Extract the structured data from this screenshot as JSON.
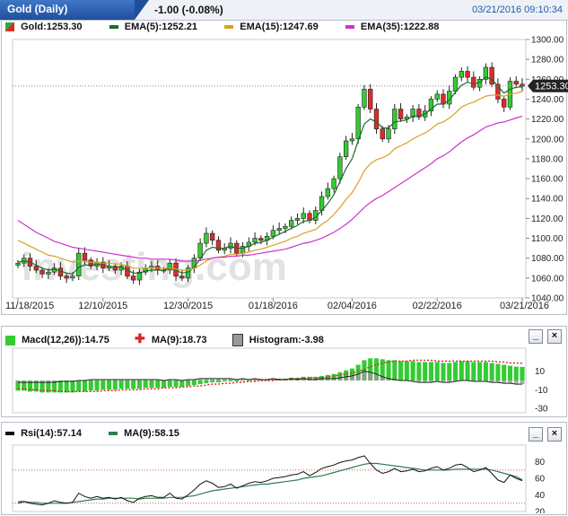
{
  "header": {
    "title": "Gold (Daily)",
    "change": "-1.00 (-0.08%)",
    "datetime": "03/21/2016 09:10:34"
  },
  "main": {
    "legend": [
      {
        "label": "Gold:1253.30",
        "color": "#1a1a1a"
      },
      {
        "label": "EMA(5):1252.21",
        "color": "#1d6b2a"
      },
      {
        "label": "EMA(15):1247.69",
        "color": "#d9a122"
      },
      {
        "label": "EMA(35):1222.88",
        "color": "#cc33cc"
      }
    ],
    "price_tag": "1253.30",
    "watermark": "investing.com"
  },
  "macd_panel": {
    "legend": [
      {
        "label": "Macd(12,26)):14.75",
        "color": "#33cc33"
      },
      {
        "label": "MA(9):18.73",
        "color": "#e02020"
      },
      {
        "label": "Histogram:-3.98",
        "color": "#999999"
      }
    ],
    "minimize": "_",
    "close": "×"
  },
  "rsi_panel": {
    "legend": [
      {
        "label": "Rsi(14):57.14",
        "color": "#111111"
      },
      {
        "label": "MA(9):58.15",
        "color": "#2e7d4f"
      }
    ],
    "minimize": "_",
    "close": "×"
  },
  "chart_data": [
    {
      "type": "candlestick",
      "x_tick_labels": [
        "11/18/2015",
        "12/10/2015",
        "12/30/2015",
        "01/18/2016",
        "02/04/2016",
        "02/22/2016",
        "03/21/2016"
      ],
      "ylim": [
        1040,
        1300
      ],
      "y_ticks": [
        1040,
        1060,
        1080,
        1100,
        1120,
        1140,
        1160,
        1180,
        1200,
        1220,
        1240,
        1260,
        1280,
        1300
      ],
      "last_price": 1253.3,
      "close": [
        1075,
        1080,
        1072,
        1068,
        1064,
        1066,
        1070,
        1062,
        1060,
        1062,
        1085,
        1078,
        1072,
        1076,
        1070,
        1072,
        1068,
        1072,
        1062,
        1058,
        1066,
        1070,
        1072,
        1068,
        1068,
        1075,
        1062,
        1060,
        1070,
        1080,
        1095,
        1105,
        1098,
        1088,
        1090,
        1095,
        1085,
        1092,
        1096,
        1100,
        1098,
        1102,
        1108,
        1110,
        1112,
        1118,
        1120,
        1125,
        1118,
        1128,
        1142,
        1150,
        1160,
        1182,
        1198,
        1200,
        1232,
        1250,
        1230,
        1210,
        1200,
        1210,
        1230,
        1220,
        1222,
        1230,
        1222,
        1228,
        1240,
        1245,
        1235,
        1248,
        1262,
        1268,
        1262,
        1252,
        1260,
        1272,
        1255,
        1240,
        1232,
        1258,
        1255,
        1253
      ],
      "series": [
        {
          "name": "EMA(5)",
          "values": [
            1076,
            1077,
            1076,
            1073,
            1070,
            1068,
            1069,
            1067,
            1065,
            1064,
            1071,
            1073,
            1073,
            1074,
            1073,
            1072,
            1071,
            1071,
            1068,
            1065,
            1065,
            1067,
            1068,
            1068,
            1068,
            1070,
            1068,
            1065,
            1066,
            1071,
            1079,
            1088,
            1091,
            1090,
            1090,
            1092,
            1090,
            1090,
            1092,
            1095,
            1096,
            1098,
            1101,
            1104,
            1107,
            1110,
            1113,
            1117,
            1118,
            1121,
            1128,
            1135,
            1144,
            1157,
            1170,
            1180,
            1198,
            1215,
            1220,
            1217,
            1211,
            1211,
            1217,
            1218,
            1219,
            1223,
            1223,
            1225,
            1230,
            1235,
            1235,
            1239,
            1247,
            1254,
            1257,
            1255,
            1257,
            1262,
            1260,
            1253,
            1246,
            1250,
            1252,
            1252.21
          ]
        },
        {
          "name": "EMA(15)",
          "values": [
            1098,
            1095,
            1092,
            1089,
            1086,
            1083,
            1082,
            1080,
            1078,
            1076,
            1077,
            1077,
            1076,
            1076,
            1075,
            1075,
            1074,
            1074,
            1072,
            1070,
            1070,
            1070,
            1070,
            1070,
            1070,
            1070,
            1069,
            1068,
            1068,
            1070,
            1073,
            1077,
            1080,
            1081,
            1082,
            1084,
            1084,
            1085,
            1086,
            1088,
            1089,
            1091,
            1093,
            1095,
            1097,
            1100,
            1102,
            1105,
            1107,
            1109,
            1114,
            1118,
            1124,
            1131,
            1139,
            1146,
            1156,
            1168,
            1175,
            1179,
            1181,
            1184,
            1190,
            1193,
            1196,
            1200,
            1203,
            1206,
            1210,
            1215,
            1217,
            1221,
            1226,
            1232,
            1235,
            1237,
            1240,
            1243,
            1244,
            1244,
            1243,
            1245,
            1246,
            1247.69
          ]
        },
        {
          "name": "EMA(35)",
          "values": [
            1118,
            1114,
            1110,
            1106,
            1103,
            1100,
            1097,
            1095,
            1093,
            1091,
            1090,
            1089,
            1088,
            1087,
            1086,
            1085,
            1084,
            1083,
            1082,
            1081,
            1080,
            1080,
            1079,
            1079,
            1079,
            1079,
            1078,
            1077,
            1077,
            1077,
            1078,
            1079,
            1080,
            1081,
            1081,
            1082,
            1082,
            1083,
            1083,
            1084,
            1085,
            1086,
            1087,
            1088,
            1089,
            1091,
            1093,
            1095,
            1096,
            1098,
            1100,
            1103,
            1106,
            1110,
            1114,
            1119,
            1125,
            1131,
            1136,
            1140,
            1143,
            1147,
            1151,
            1155,
            1159,
            1163,
            1167,
            1171,
            1175,
            1180,
            1183,
            1187,
            1192,
            1197,
            1201,
            1204,
            1208,
            1212,
            1214,
            1216,
            1217,
            1219,
            1221,
            1222.88
          ]
        }
      ]
    },
    {
      "type": "bar",
      "ylim": [
        -35,
        35
      ],
      "y_ticks": [
        10,
        -10,
        -30
      ],
      "series": [
        {
          "name": "Macd(12,26))",
          "values": [
            -11,
            -11,
            -12,
            -12,
            -13,
            -13,
            -13,
            -13,
            -13,
            -13,
            -12,
            -12,
            -11,
            -11,
            -10,
            -10,
            -10,
            -9,
            -9,
            -9,
            -9,
            -8,
            -8,
            -8,
            -8,
            -7,
            -7,
            -7,
            -6,
            -5,
            -4,
            -3,
            -2,
            -2,
            -1,
            -1,
            -1,
            0,
            0,
            1,
            1,
            1,
            2,
            2,
            2,
            3,
            3,
            4,
            4,
            4,
            5,
            6,
            7,
            9,
            11,
            13,
            17,
            22,
            24,
            24,
            23,
            22,
            22,
            21,
            21,
            21,
            20,
            20,
            20,
            20,
            19,
            19,
            20,
            21,
            21,
            20,
            20,
            20,
            19,
            18,
            17,
            16,
            15,
            14.75
          ]
        },
        {
          "name": "MA(9)",
          "values": [
            -9,
            -9,
            -10,
            -10,
            -11,
            -11,
            -11,
            -12,
            -12,
            -12,
            -12,
            -12,
            -12,
            -12,
            -11,
            -11,
            -11,
            -10,
            -10,
            -10,
            -10,
            -9,
            -9,
            -9,
            -8,
            -8,
            -8,
            -7,
            -7,
            -6,
            -6,
            -5,
            -4,
            -4,
            -3,
            -3,
            -2,
            -2,
            -1,
            -1,
            0,
            0,
            0,
            1,
            1,
            1,
            2,
            2,
            3,
            3,
            3,
            4,
            5,
            6,
            7,
            8,
            10,
            12,
            15,
            17,
            19,
            20,
            21,
            21,
            21,
            22,
            22,
            22,
            22,
            21,
            21,
            21,
            21,
            21,
            21,
            21,
            21,
            21,
            21,
            20,
            20,
            19,
            19,
            18.73
          ]
        },
        {
          "name": "Histogram",
          "values": [
            -2,
            -2,
            -2,
            -2,
            -2,
            -2,
            -2,
            -1,
            -1,
            -1,
            0,
            0,
            1,
            1,
            1,
            1,
            1,
            1,
            1,
            1,
            1,
            1,
            1,
            1,
            0,
            1,
            1,
            0,
            1,
            1,
            2,
            2,
            2,
            2,
            2,
            2,
            1,
            2,
            1,
            2,
            1,
            1,
            2,
            1,
            1,
            2,
            1,
            2,
            1,
            1,
            2,
            2,
            2,
            3,
            4,
            5,
            7,
            10,
            9,
            7,
            4,
            2,
            1,
            0,
            0,
            -1,
            -2,
            -2,
            -2,
            -1,
            -2,
            -2,
            -1,
            0,
            0,
            -1,
            -1,
            -1,
            -2,
            -2,
            -3,
            -3,
            -4,
            -3.98
          ]
        }
      ]
    },
    {
      "type": "line",
      "ylim": [
        20,
        100
      ],
      "y_ticks": [
        80,
        60,
        40,
        20
      ],
      "series": [
        {
          "name": "Rsi(14)",
          "values": [
            30,
            32,
            30,
            29,
            28,
            30,
            33,
            31,
            30,
            31,
            42,
            38,
            36,
            38,
            36,
            37,
            35,
            37,
            33,
            31,
            36,
            38,
            39,
            37,
            37,
            42,
            36,
            35,
            40,
            46,
            53,
            57,
            54,
            49,
            50,
            53,
            48,
            51,
            54,
            56,
            55,
            57,
            60,
            61,
            62,
            64,
            65,
            68,
            63,
            67,
            72,
            74,
            76,
            79,
            81,
            82,
            85,
            87,
            78,
            70,
            66,
            68,
            72,
            68,
            69,
            71,
            68,
            69,
            72,
            74,
            70,
            72,
            76,
            77,
            73,
            68,
            70,
            73,
            66,
            58,
            55,
            64,
            60,
            57.14
          ]
        },
        {
          "name": "MA(9)",
          "values": [
            32,
            32,
            31,
            31,
            30,
            30,
            30,
            30,
            30,
            31,
            32,
            33,
            34,
            35,
            35,
            36,
            36,
            36,
            36,
            36,
            35,
            36,
            36,
            36,
            36,
            37,
            37,
            37,
            38,
            39,
            41,
            43,
            45,
            46,
            47,
            48,
            49,
            50,
            51,
            52,
            53,
            53,
            54,
            55,
            56,
            57,
            58,
            60,
            61,
            62,
            63,
            65,
            67,
            69,
            71,
            73,
            75,
            77,
            78,
            78,
            77,
            76,
            75,
            74,
            73,
            72,
            71,
            70,
            70,
            70,
            70,
            70,
            71,
            71,
            71,
            71,
            71,
            71,
            70,
            68,
            66,
            64,
            62,
            58.15
          ]
        }
      ]
    }
  ]
}
